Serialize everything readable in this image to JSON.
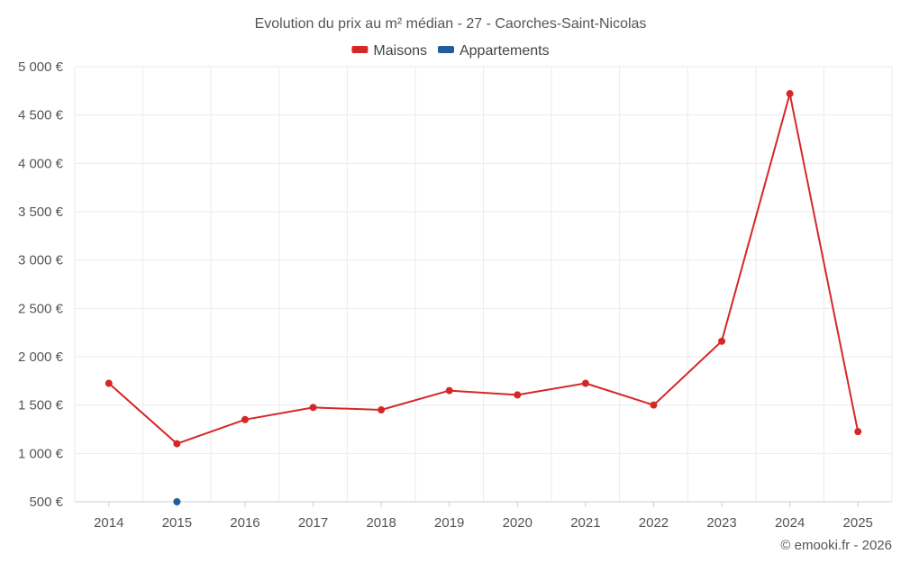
{
  "chart_data": {
    "type": "line",
    "title": "Evolution du prix au m² médian - 27 - Caorches-Saint-Nicolas",
    "categories": [
      "2014",
      "2015",
      "2016",
      "2017",
      "2018",
      "2019",
      "2020",
      "2021",
      "2022",
      "2023",
      "2024",
      "2025"
    ],
    "series": [
      {
        "name": "Maisons",
        "color": "#d62728",
        "values": [
          1725,
          1100,
          1350,
          1475,
          1450,
          1650,
          1605,
          1725,
          1500,
          2160,
          4720,
          1225
        ]
      },
      {
        "name": "Appartements",
        "color": "#1f5f9a",
        "values": [
          null,
          500,
          null,
          null,
          null,
          null,
          null,
          null,
          null,
          null,
          null,
          null
        ]
      }
    ],
    "ylim": [
      500,
      5000
    ],
    "yticks": [
      500,
      1000,
      1500,
      2000,
      2500,
      3000,
      3500,
      4000,
      4500,
      5000
    ],
    "ytick_labels": [
      "500 €",
      "1 000 €",
      "1 500 €",
      "2 000 €",
      "2 500 €",
      "3 000 €",
      "3 500 €",
      "4 000 €",
      "4 500 €",
      "5 000 €"
    ],
    "legend_position": "top-center",
    "grid": true
  },
  "credit": "© emooki.fr - 2026"
}
